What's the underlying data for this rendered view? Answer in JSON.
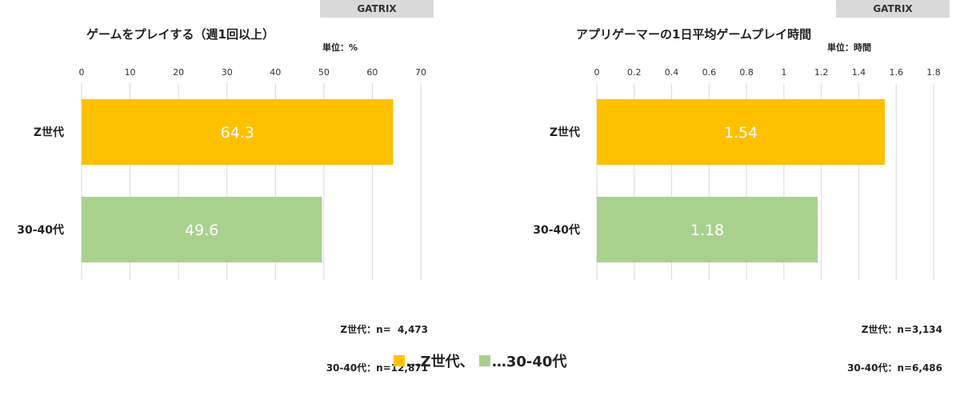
{
  "colors": {
    "z_gen": "#FFC000",
    "age_30_40": "#A9D18E",
    "grid": "#D9D9D9",
    "tag_bg": "#D9D9D9"
  },
  "left": {
    "source_tag": "GATRIX",
    "title": "ゲームをプレイする（週1回以上）",
    "unit": "単位：%",
    "notes": [
      "Z世代：n=  4,473",
      "30-40代：n=12,871"
    ]
  },
  "right": {
    "source_tag": "GATRIX",
    "title": "アプリゲーマーの1日平均ゲームプレイ時間",
    "unit": "単位：時間",
    "notes": [
      "Z世代：n=3,134",
      "30-40代：n=6,486"
    ]
  },
  "legend": {
    "text": "■…Z世代、■…30-40代",
    "items": [
      "…Z世代、",
      "…30-40代"
    ]
  },
  "chart_data": [
    {
      "type": "bar",
      "orientation": "horizontal",
      "title": "ゲームをプレイする（週1回以上）",
      "categories": [
        "Z世代",
        "30-40代"
      ],
      "values": [
        64.3,
        49.6
      ],
      "value_labels": [
        "64.3",
        "49.6"
      ],
      "xlim": [
        0,
        70
      ],
      "ticks": [
        0,
        10,
        20,
        30,
        40,
        50,
        60,
        70
      ],
      "tick_labels": [
        "0",
        "10",
        "20",
        "30",
        "40",
        "50",
        "60",
        "70"
      ],
      "grid": true
    },
    {
      "type": "bar",
      "orientation": "horizontal",
      "title": "アプリゲーマーの1日平均ゲームプレイ時間",
      "categories": [
        "Z世代",
        "30-40代"
      ],
      "values": [
        1.54,
        1.18
      ],
      "value_labels": [
        "1.54",
        "1.18"
      ],
      "xlim": [
        0,
        1.8
      ],
      "ticks": [
        0,
        0.2,
        0.4,
        0.6,
        0.8,
        1,
        1.2,
        1.4,
        1.6,
        1.8
      ],
      "tick_labels": [
        "0",
        "0.2",
        "0.4",
        "0.6",
        "0.8",
        "1",
        "1.2",
        "1.4",
        "1.6",
        "1.8"
      ],
      "grid": true
    }
  ]
}
